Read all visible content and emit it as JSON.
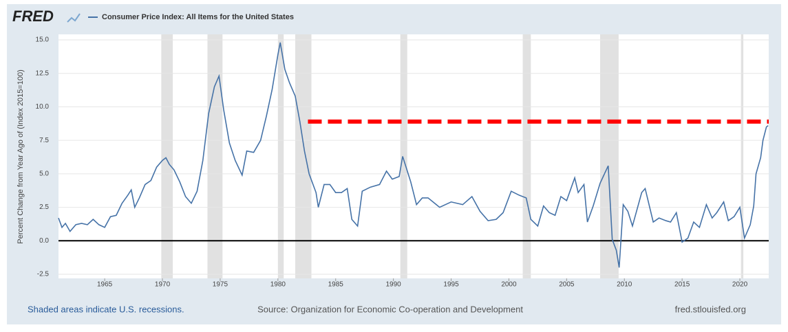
{
  "chart_data": {
    "type": "line",
    "logo": "FRED",
    "y_label": "Percent Change from Year Ago of (Index 2015=100)",
    "notes": [
      "Shaded areas indicate U.S. recessions.",
      "Source: Organization for Economic Co-operation and Development",
      "fred.stlouisfed.org"
    ],
    "x": [
      1961.0,
      1961.3,
      1961.6,
      1962.0,
      1962.5,
      1963.0,
      1963.5,
      1964.0,
      1964.5,
      1965.0,
      1965.5,
      1966.0,
      1966.5,
      1967.0,
      1967.3,
      1967.6,
      1968.0,
      1968.5,
      1969.0,
      1969.5,
      1970.0,
      1970.3,
      1970.6,
      1971.0,
      1971.5,
      1972.0,
      1972.5,
      1973.0,
      1973.5,
      1974.0,
      1974.5,
      1974.9,
      1975.3,
      1975.8,
      1976.3,
      1976.9,
      1977.3,
      1977.9,
      1978.5,
      1979.0,
      1979.5,
      1980.0,
      1980.2,
      1980.6,
      1981.0,
      1981.5,
      1981.9,
      1982.3,
      1982.7,
      1983.3,
      1983.5,
      1984.0,
      1984.5,
      1985.0,
      1985.5,
      1986.0,
      1986.4,
      1986.9,
      1987.3,
      1988.0,
      1988.8,
      1989.4,
      1989.9,
      1990.5,
      1990.8,
      1991.5,
      1992.0,
      1992.5,
      1993.0,
      1994.0,
      1995.0,
      1996.0,
      1996.8,
      1997.5,
      1998.2,
      1998.9,
      1999.5,
      2000.2,
      2000.9,
      2001.5,
      2001.9,
      2002.5,
      2003.0,
      2003.5,
      2004.0,
      2004.5,
      2005.0,
      2005.7,
      2006.0,
      2006.5,
      2006.8,
      2007.3,
      2007.9,
      2008.6,
      2008.95,
      2009.3,
      2009.55,
      2009.9,
      2010.3,
      2010.7,
      2011.5,
      2011.8,
      2012.5,
      2013.0,
      2013.6,
      2014.0,
      2014.5,
      2015.0,
      2015.5,
      2016.0,
      2016.5,
      2017.1,
      2017.6,
      2018.0,
      2018.6,
      2019.0,
      2019.5,
      2020.0,
      2020.4,
      2020.9,
      2021.2,
      2021.4,
      2021.8,
      2022.0,
      2022.3,
      2022.45
    ],
    "series": [
      {
        "name": "Consumer Price Index: All Items for the United States",
        "color": "#4572a7",
        "values": [
          1.7,
          1.0,
          1.3,
          0.7,
          1.2,
          1.3,
          1.2,
          1.6,
          1.2,
          1.0,
          1.8,
          1.9,
          2.8,
          3.4,
          3.8,
          2.5,
          3.2,
          4.2,
          4.5,
          5.5,
          6.0,
          6.2,
          5.7,
          5.3,
          4.4,
          3.3,
          2.8,
          3.7,
          6.0,
          9.5,
          11.5,
          12.3,
          9.8,
          7.3,
          6.0,
          4.9,
          6.7,
          6.6,
          7.5,
          9.3,
          11.3,
          13.9,
          14.8,
          12.8,
          11.8,
          10.8,
          8.9,
          6.7,
          5.0,
          3.6,
          2.5,
          4.2,
          4.2,
          3.6,
          3.6,
          3.9,
          1.6,
          1.1,
          3.7,
          4.0,
          4.2,
          5.2,
          4.6,
          4.8,
          6.3,
          4.4,
          2.7,
          3.2,
          3.2,
          2.5,
          2.9,
          2.7,
          3.3,
          2.2,
          1.5,
          1.6,
          2.1,
          3.7,
          3.4,
          3.2,
          1.6,
          1.1,
          2.6,
          2.1,
          1.9,
          3.3,
          3.0,
          4.7,
          3.6,
          4.2,
          1.4,
          2.6,
          4.3,
          5.6,
          0.1,
          -0.7,
          -2.0,
          2.7,
          2.2,
          1.1,
          3.6,
          3.9,
          1.4,
          1.7,
          1.5,
          1.4,
          2.1,
          -0.1,
          0.2,
          1.4,
          1.0,
          2.7,
          1.7,
          2.1,
          2.9,
          1.5,
          1.8,
          2.5,
          0.2,
          1.2,
          2.6,
          5.0,
          6.2,
          7.5,
          8.5,
          8.6
        ]
      }
    ],
    "recessions": [
      [
        1969.9,
        1970.9
      ],
      [
        1973.9,
        1975.2
      ],
      [
        1980.0,
        1980.5
      ],
      [
        1981.5,
        1982.9
      ],
      [
        1990.6,
        1991.2
      ],
      [
        2001.2,
        2001.9
      ],
      [
        2007.9,
        2009.5
      ],
      [
        2020.1,
        2020.3
      ]
    ],
    "reference_line": {
      "y": 8.9,
      "x": [
        1982.6,
        2022.5
      ],
      "color": "#ff0000"
    },
    "xlim": [
      1961.0,
      2022.5
    ],
    "xticks": [
      1965,
      1970,
      1975,
      1980,
      1985,
      1990,
      1995,
      2000,
      2005,
      2010,
      2015,
      2020
    ],
    "ylim": [
      -2.5,
      15
    ],
    "yticks": [
      {
        "value": -2.5,
        "label": "-2.5"
      },
      {
        "value": 0,
        "label": "0.0"
      },
      {
        "value": 2.5,
        "label": "2.5"
      },
      {
        "value": 5,
        "label": "5.0"
      },
      {
        "value": 7.5,
        "label": "7.5"
      },
      {
        "value": 10,
        "label": "10.0"
      },
      {
        "value": 12.5,
        "label": "12.5"
      },
      {
        "value": 15,
        "label": "15.0"
      }
    ],
    "grid": true
  }
}
